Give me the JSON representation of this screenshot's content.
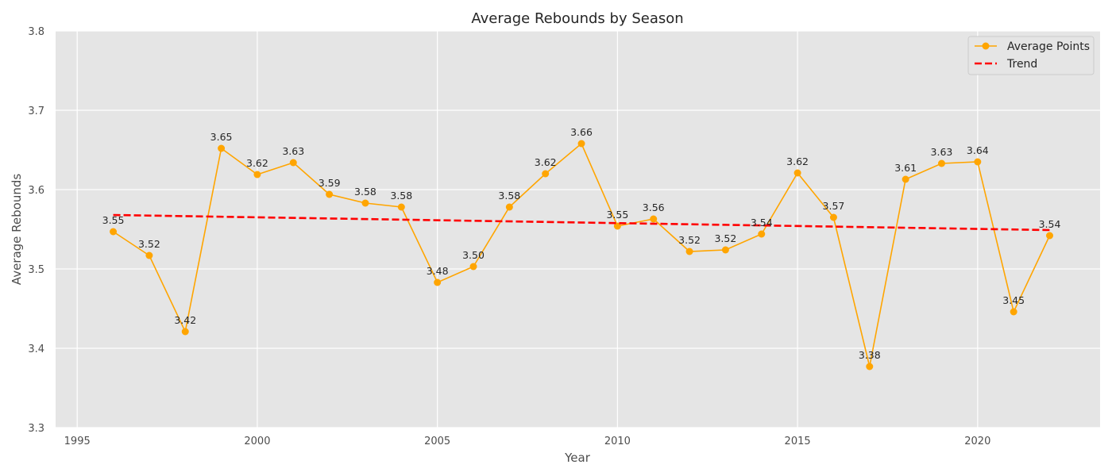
{
  "chart_data": {
    "type": "line",
    "title": "Average Rebounds by Season",
    "xlabel": "Year",
    "ylabel": "Average Rebounds",
    "xlim": [
      1994.4,
      2023.4
    ],
    "ylim": [
      3.3,
      3.8
    ],
    "xticks": [
      1995,
      2000,
      2005,
      2010,
      2015,
      2020
    ],
    "yticks": [
      3.3,
      3.4,
      3.5,
      3.6,
      3.7,
      3.8
    ],
    "grid": true,
    "legend_position": "top-right",
    "x": [
      1996,
      1997,
      1998,
      1999,
      2000,
      2001,
      2002,
      2003,
      2004,
      2005,
      2006,
      2007,
      2008,
      2009,
      2010,
      2011,
      2012,
      2013,
      2014,
      2015,
      2016,
      2017,
      2018,
      2019,
      2020,
      2021,
      2022
    ],
    "series": [
      {
        "name": "Average Points",
        "color": "#ffa500",
        "style": "line-marker",
        "values": [
          3.547,
          3.517,
          3.421,
          3.652,
          3.619,
          3.634,
          3.594,
          3.583,
          3.578,
          3.483,
          3.503,
          3.578,
          3.62,
          3.658,
          3.554,
          3.563,
          3.522,
          3.524,
          3.544,
          3.621,
          3.565,
          3.377,
          3.613,
          3.633,
          3.635,
          3.446,
          3.542
        ],
        "labels": [
          "3.55",
          "3.52",
          "3.42",
          "3.65",
          "3.62",
          "3.63",
          "3.59",
          "3.58",
          "3.58",
          "3.48",
          "3.50",
          "3.58",
          "3.62",
          "3.66",
          "3.55",
          "3.56",
          "3.52",
          "3.52",
          "3.54",
          "3.62",
          "3.57",
          "3.38",
          "3.61",
          "3.63",
          "3.64",
          "3.45",
          "3.54"
        ]
      },
      {
        "name": "Trend",
        "color": "#ff0000",
        "style": "dashed",
        "x": [
          1996,
          2022
        ],
        "values": [
          3.568,
          3.549
        ]
      }
    ]
  }
}
